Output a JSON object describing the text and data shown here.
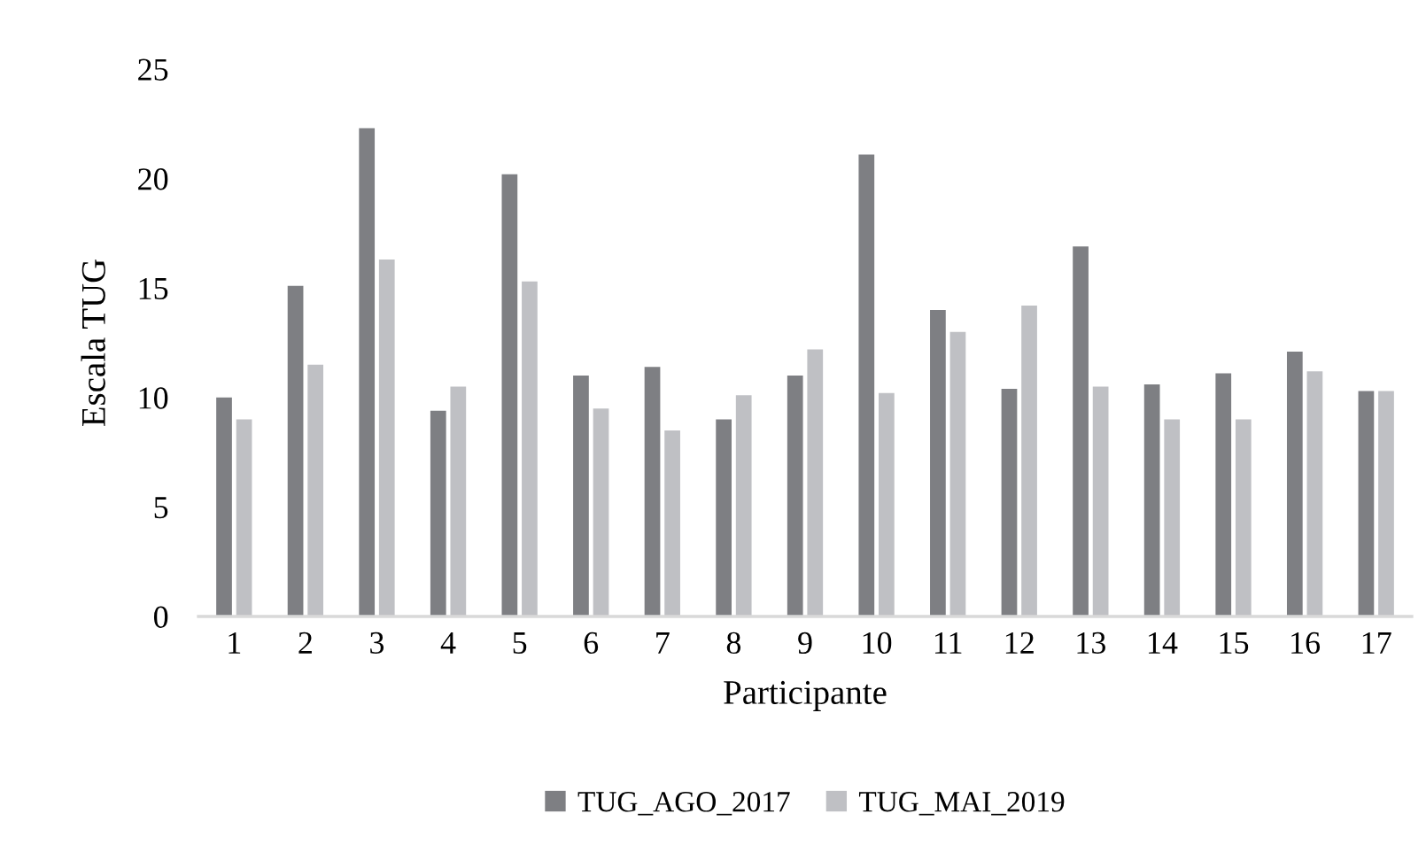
{
  "chart_data": {
    "type": "bar",
    "xlabel": "Participante",
    "ylabel": "Escala TUG",
    "categories": [
      "1",
      "2",
      "3",
      "4",
      "5",
      "6",
      "7",
      "8",
      "9",
      "10",
      "11",
      "12",
      "13",
      "14",
      "15",
      "16",
      "17"
    ],
    "series": [
      {
        "name": "TUG_AGO_2017",
        "color": "#7e7f83",
        "values": [
          10.0,
          15.1,
          22.3,
          9.4,
          20.2,
          11.0,
          11.4,
          9.0,
          11.0,
          21.1,
          14.0,
          10.4,
          16.9,
          10.6,
          11.1,
          12.1,
          10.3
        ]
      },
      {
        "name": "TUG_MAI_2019",
        "color": "#bfc0c4",
        "values": [
          9.0,
          11.5,
          16.3,
          10.5,
          15.3,
          9.5,
          8.5,
          10.1,
          12.2,
          10.2,
          13.0,
          14.2,
          10.5,
          9.0,
          9.0,
          11.2,
          10.3
        ]
      }
    ],
    "ylim": [
      0,
      25
    ],
    "yticks": [
      0,
      5,
      10,
      15,
      20,
      25
    ],
    "grid": false,
    "legend": "bottom"
  }
}
